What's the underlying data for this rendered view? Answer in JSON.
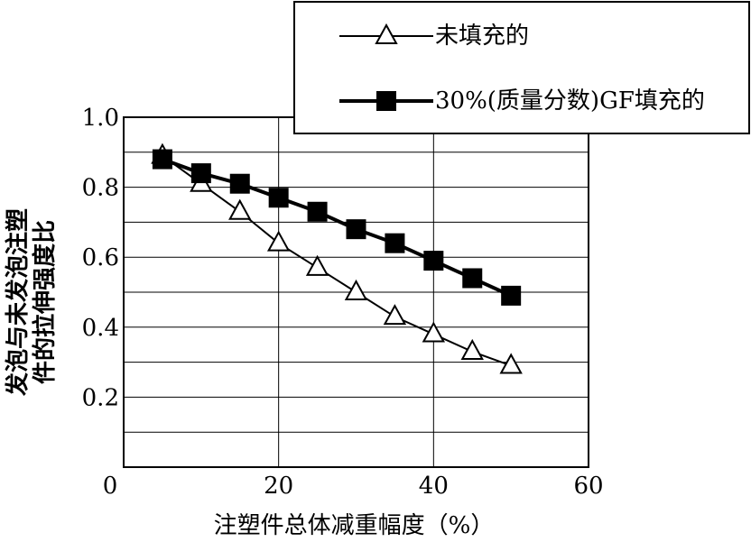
{
  "chart_data": {
    "type": "line",
    "xlabel": "注塑件总体减重幅度（%）",
    "ylabel": [
      "发泡与未发泡注塑",
      "件的拉伸强度比"
    ],
    "xlim": [
      0,
      60
    ],
    "ylim": [
      0,
      1.0
    ],
    "x_ticks": [
      "0",
      "20",
      "40",
      "60"
    ],
    "y_ticks": [
      "0.2",
      "0.4",
      "0.6",
      "0.8",
      "1.0"
    ],
    "grid": true,
    "legend_position": "top-right",
    "series": [
      {
        "name": "未填充的",
        "marker": "triangle-open",
        "x": [
          5,
          10,
          15,
          20,
          25,
          30,
          35,
          40,
          45,
          50
        ],
        "y": [
          0.89,
          0.81,
          0.73,
          0.64,
          0.57,
          0.5,
          0.43,
          0.38,
          0.33,
          0.29
        ]
      },
      {
        "name": "30%(质量分数)GF填充的",
        "marker": "square-filled",
        "x": [
          5,
          10,
          15,
          20,
          25,
          30,
          35,
          40,
          45,
          50
        ],
        "y": [
          0.88,
          0.84,
          0.81,
          0.77,
          0.73,
          0.68,
          0.64,
          0.59,
          0.54,
          0.49
        ]
      }
    ]
  }
}
